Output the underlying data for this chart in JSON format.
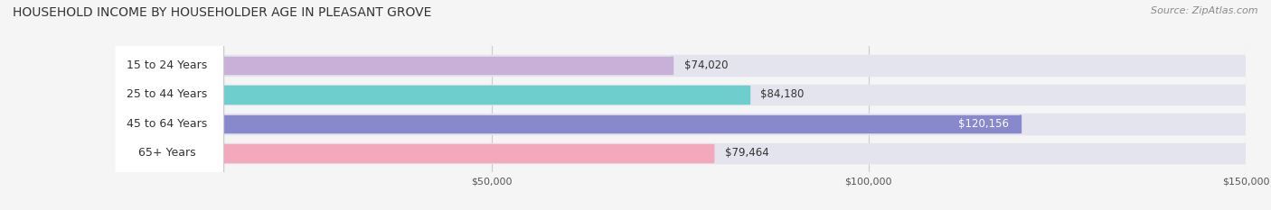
{
  "title": "HOUSEHOLD INCOME BY HOUSEHOLDER AGE IN PLEASANT GROVE",
  "source": "Source: ZipAtlas.com",
  "categories": [
    "15 to 24 Years",
    "25 to 44 Years",
    "45 to 64 Years",
    "65+ Years"
  ],
  "values": [
    74020,
    84180,
    120156,
    79464
  ],
  "bar_colors": [
    "#c8b0d8",
    "#6ecece",
    "#8888cc",
    "#f4a8bc"
  ],
  "bar_bg_color": "#e4e4ee",
  "label_colors": [
    "#444444",
    "#444444",
    "#ffffff",
    "#444444"
  ],
  "value_labels": [
    "$74,020",
    "$84,180",
    "$120,156",
    "$79,464"
  ],
  "xlim": [
    0,
    150000
  ],
  "xticks": [
    50000,
    100000,
    150000
  ],
  "xticklabels": [
    "$50,000",
    "$100,000",
    "$150,000"
  ],
  "figsize": [
    14.06,
    2.33
  ],
  "dpi": 100,
  "title_fontsize": 10,
  "source_fontsize": 8,
  "bar_label_fontsize": 8.5,
  "category_fontsize": 9,
  "tick_fontsize": 8,
  "bar_height": 0.6,
  "bg_bar_height": 0.7
}
